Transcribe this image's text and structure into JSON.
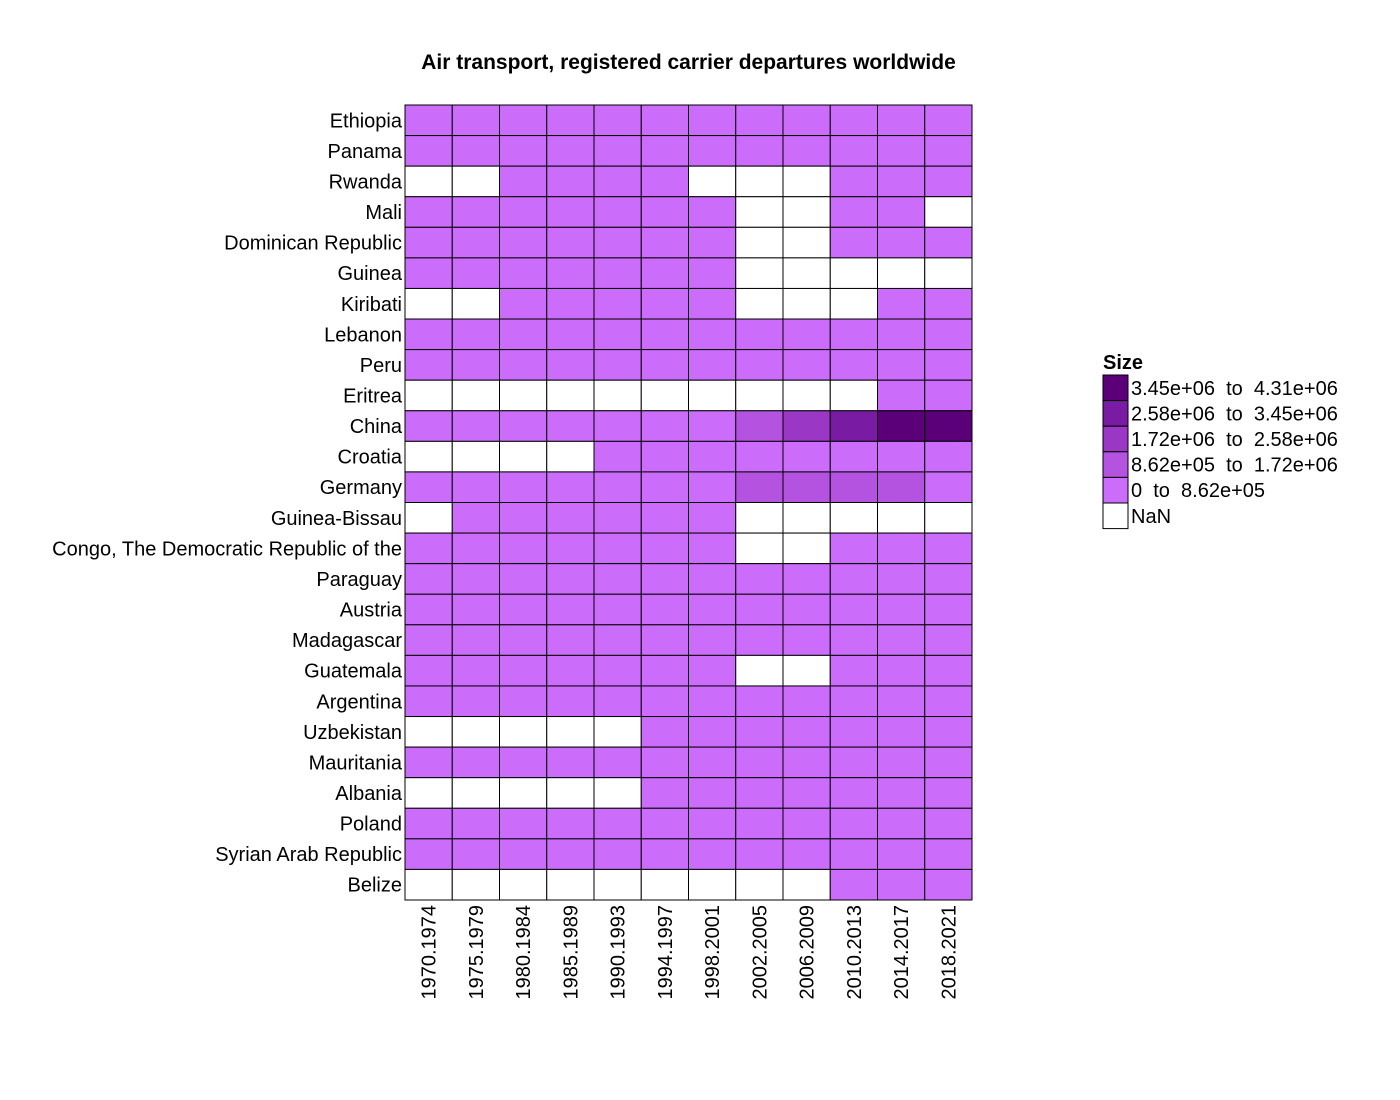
{
  "chart_data": {
    "type": "heatmap",
    "title": "Air transport, registered carrier departures worldwide",
    "rows": [
      "Ethiopia",
      "Panama",
      "Rwanda",
      "Mali",
      "Dominican Republic",
      "Guinea",
      "Kiribati",
      "Lebanon",
      "Peru",
      "Eritrea",
      "China",
      "Croatia",
      "Germany",
      "Guinea-Bissau",
      "Congo, The Democratic Republic of the",
      "Paraguay",
      "Austria",
      "Madagascar",
      "Guatemala",
      "Argentina",
      "Uzbekistan",
      "Mauritania",
      "Albania",
      "Poland",
      "Syrian Arab Republic",
      "Belize"
    ],
    "columns": [
      "1970.1974",
      "1975.1979",
      "1980.1984",
      "1985.1989",
      "1990.1993",
      "1994.1997",
      "1998.2001",
      "2002.2005",
      "2006.2009",
      "2010.2013",
      "2014.2017",
      "2018.2021"
    ],
    "legend_position": "right",
    "legend": {
      "title": "Size",
      "bins": [
        {
          "label": "0  to  8.62e+05",
          "color": "#CB6CFA"
        },
        {
          "label": "8.62e+05  to  1.72e+06",
          "color": "#B453E0"
        },
        {
          "label": "1.72e+06  to  2.58e+06",
          "color": "#9A37C4"
        },
        {
          "label": "2.58e+06  to  3.45e+06",
          "color": "#7A1CA3"
        },
        {
          "label": "3.45e+06  to  4.31e+06",
          "color": "#5B0079"
        }
      ],
      "nan": {
        "label": "NaN",
        "color": "#FFFFFF"
      }
    },
    "cell_bins": [
      [
        0,
        0,
        0,
        0,
        0,
        0,
        0,
        0,
        0,
        0,
        0,
        0
      ],
      [
        0,
        0,
        0,
        0,
        0,
        0,
        0,
        0,
        0,
        0,
        0,
        0
      ],
      [
        null,
        null,
        0,
        0,
        0,
        0,
        null,
        null,
        null,
        0,
        0,
        0
      ],
      [
        0,
        0,
        0,
        0,
        0,
        0,
        0,
        null,
        null,
        0,
        0,
        null
      ],
      [
        0,
        0,
        0,
        0,
        0,
        0,
        0,
        null,
        null,
        0,
        0,
        0
      ],
      [
        0,
        0,
        0,
        0,
        0,
        0,
        0,
        null,
        null,
        null,
        null,
        null
      ],
      [
        null,
        null,
        0,
        0,
        0,
        0,
        0,
        null,
        null,
        null,
        0,
        0
      ],
      [
        0,
        0,
        0,
        0,
        0,
        0,
        0,
        0,
        0,
        0,
        0,
        0
      ],
      [
        0,
        0,
        0,
        0,
        0,
        0,
        0,
        0,
        0,
        0,
        0,
        0
      ],
      [
        null,
        null,
        null,
        null,
        null,
        null,
        null,
        null,
        null,
        null,
        0,
        0
      ],
      [
        0,
        0,
        0,
        0,
        0,
        0,
        0,
        1,
        2,
        3,
        4,
        4
      ],
      [
        null,
        null,
        null,
        null,
        0,
        0,
        0,
        0,
        0,
        0,
        0,
        0
      ],
      [
        0,
        0,
        0,
        0,
        0,
        0,
        0,
        1,
        1,
        1,
        1,
        0
      ],
      [
        null,
        0,
        0,
        0,
        0,
        0,
        0,
        null,
        null,
        null,
        null,
        null
      ],
      [
        0,
        0,
        0,
        0,
        0,
        0,
        0,
        null,
        null,
        0,
        0,
        0
      ],
      [
        0,
        0,
        0,
        0,
        0,
        0,
        0,
        0,
        0,
        0,
        0,
        0
      ],
      [
        0,
        0,
        0,
        0,
        0,
        0,
        0,
        0,
        0,
        0,
        0,
        0
      ],
      [
        0,
        0,
        0,
        0,
        0,
        0,
        0,
        0,
        0,
        0,
        0,
        0
      ],
      [
        0,
        0,
        0,
        0,
        0,
        0,
        0,
        null,
        null,
        0,
        0,
        0
      ],
      [
        0,
        0,
        0,
        0,
        0,
        0,
        0,
        0,
        0,
        0,
        0,
        0
      ],
      [
        null,
        null,
        null,
        null,
        null,
        0,
        0,
        0,
        0,
        0,
        0,
        0
      ],
      [
        0,
        0,
        0,
        0,
        0,
        0,
        0,
        0,
        0,
        0,
        0,
        0
      ],
      [
        null,
        null,
        null,
        null,
        null,
        0,
        0,
        0,
        0,
        0,
        0,
        0
      ],
      [
        0,
        0,
        0,
        0,
        0,
        0,
        0,
        0,
        0,
        0,
        0,
        0
      ],
      [
        0,
        0,
        0,
        0,
        0,
        0,
        0,
        0,
        0,
        0,
        0,
        0
      ],
      [
        null,
        null,
        null,
        null,
        null,
        null,
        null,
        null,
        null,
        0,
        0,
        0
      ]
    ]
  }
}
